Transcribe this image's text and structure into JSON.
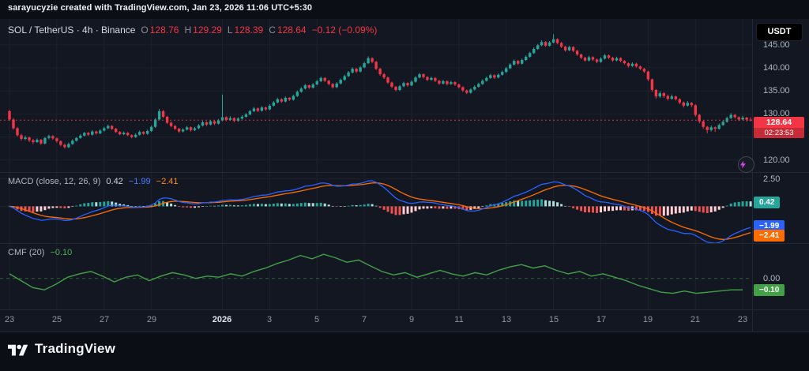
{
  "attribution": "sarayucyzie created with TradingView.com, Jan 23, 2026 11:06 UTC+5:30",
  "currency_button": "USDT",
  "main_pane": {
    "title": "SOL / TetherUS · 4h · Binance",
    "ohlc": {
      "o_label": "O",
      "o": "128.76",
      "h_label": "H",
      "h": "129.29",
      "l_label": "L",
      "l": "128.39",
      "c_label": "C",
      "c": "128.64",
      "change": "−0.12 (−0.09%)"
    },
    "price_badge": {
      "price": "128.64",
      "countdown": "02:23:53"
    }
  },
  "macd_pane": {
    "name": "MACD",
    "params": "(close, 12, 26, 9)",
    "hist_value": "0.42",
    "macd_value": "−1.99",
    "signal_value": "−2.41",
    "axis_label": "2.50",
    "badges": {
      "hist": "0.42",
      "macd": "−1.99",
      "signal": "−2.41"
    }
  },
  "cmf_pane": {
    "name": "CMF",
    "params": "(20)",
    "value": "−0.10",
    "axis_label": "0.00",
    "badge": "−0.10"
  },
  "logo_text": "TradingView",
  "chart_data": {
    "type": "candlestick",
    "title": "SOL / TetherUS · 4h · Binance",
    "symbol": "SOL/USDT",
    "interval": "4h",
    "exchange": "Binance",
    "last_price": 128.64,
    "last": {
      "open": 128.76,
      "high": 129.29,
      "low": 128.39,
      "close": 128.64,
      "change": -0.12,
      "change_pct": -0.09
    },
    "price_axis": {
      "range": [
        117.4,
        150.6
      ],
      "ticks": [
        {
          "value": 145,
          "label": "145.00"
        },
        {
          "value": 140,
          "label": "140.00"
        },
        {
          "value": 135,
          "label": "135.00"
        },
        {
          "value": 130,
          "label": "130.00"
        },
        {
          "value": 120,
          "label": "120.00"
        }
      ],
      "gridlines": [
        145,
        140,
        135,
        130,
        125,
        120
      ]
    },
    "x_axis": {
      "ticks": [
        {
          "index": 0,
          "label": "23"
        },
        {
          "index": 12,
          "label": "25"
        },
        {
          "index": 24,
          "label": "27"
        },
        {
          "index": 36,
          "label": "29"
        },
        {
          "index": 54,
          "label": "2026",
          "major": true
        },
        {
          "index": 66,
          "label": "3"
        },
        {
          "index": 78,
          "label": "5"
        },
        {
          "index": 90,
          "label": "7"
        },
        {
          "index": 102,
          "label": "9"
        },
        {
          "index": 114,
          "label": "11"
        },
        {
          "index": 126,
          "label": "13"
        },
        {
          "index": 138,
          "label": "15"
        },
        {
          "index": 150,
          "label": "17"
        },
        {
          "index": 162,
          "label": "19"
        },
        {
          "index": 174,
          "label": "21"
        },
        {
          "index": 186,
          "label": "23"
        }
      ]
    },
    "candles": [
      [
        130.6,
        130.9,
        128.5,
        128.8
      ],
      [
        128.8,
        129.1,
        126.6,
        126.9
      ],
      [
        126.9,
        127.2,
        125.1,
        125.4
      ],
      [
        125.4,
        125.7,
        124.2,
        124.6
      ],
      [
        124.6,
        125.3,
        124.3,
        124.9
      ],
      [
        124.9,
        125.1,
        123.9,
        124.3
      ],
      [
        124.3,
        124.6,
        123.5,
        123.9
      ],
      [
        123.9,
        124.7,
        123.7,
        124.4
      ],
      [
        124.4,
        124.6,
        123.3,
        123.6
      ],
      [
        123.6,
        125.0,
        123.4,
        124.8
      ],
      [
        124.8,
        125.5,
        124.5,
        125.2
      ],
      [
        125.2,
        125.4,
        124.4,
        124.7
      ],
      [
        124.7,
        124.9,
        123.8,
        124.1
      ],
      [
        124.1,
        124.3,
        123.0,
        123.3
      ],
      [
        123.3,
        123.6,
        122.5,
        122.8
      ],
      [
        122.8,
        123.8,
        122.6,
        123.5
      ],
      [
        123.5,
        124.5,
        123.3,
        124.2
      ],
      [
        124.2,
        125.0,
        124.0,
        124.8
      ],
      [
        124.8,
        125.6,
        124.6,
        125.3
      ],
      [
        125.3,
        126.1,
        125.1,
        125.9
      ],
      [
        125.9,
        126.1,
        125.2,
        125.5
      ],
      [
        125.5,
        126.5,
        125.3,
        126.2
      ],
      [
        126.2,
        126.4,
        125.5,
        125.8
      ],
      [
        125.8,
        126.7,
        125.6,
        126.4
      ],
      [
        126.4,
        127.2,
        126.2,
        126.9
      ],
      [
        126.9,
        127.7,
        126.7,
        127.4
      ],
      [
        127.4,
        127.6,
        126.5,
        126.8
      ],
      [
        126.8,
        127.0,
        125.9,
        126.1
      ],
      [
        126.1,
        126.3,
        125.4,
        125.6
      ],
      [
        125.6,
        126.2,
        125.4,
        125.9
      ],
      [
        125.9,
        126.1,
        125.2,
        125.4
      ],
      [
        125.4,
        125.6,
        124.7,
        125.0
      ],
      [
        125.0,
        125.8,
        124.8,
        125.5
      ],
      [
        125.5,
        126.4,
        125.3,
        126.1
      ],
      [
        126.1,
        126.3,
        125.5,
        125.7
      ],
      [
        125.7,
        126.6,
        125.5,
        126.3
      ],
      [
        126.3,
        127.5,
        126.1,
        127.2
      ],
      [
        127.2,
        129.1,
        127.0,
        128.8
      ],
      [
        128.8,
        131.1,
        128.6,
        130.6
      ],
      [
        130.6,
        130.9,
        129.1,
        129.4
      ],
      [
        129.4,
        129.6,
        127.8,
        128.1
      ],
      [
        128.1,
        128.4,
        127.1,
        127.4
      ],
      [
        127.4,
        127.6,
        126.5,
        126.8
      ],
      [
        126.8,
        127.0,
        125.9,
        126.2
      ],
      [
        126.2,
        126.9,
        126.0,
        126.6
      ],
      [
        126.6,
        127.4,
        126.4,
        127.1
      ],
      [
        127.1,
        127.3,
        126.2,
        126.5
      ],
      [
        126.5,
        127.2,
        126.3,
        126.9
      ],
      [
        126.9,
        127.8,
        126.7,
        127.5
      ],
      [
        127.5,
        128.5,
        127.3,
        128.2
      ],
      [
        128.2,
        128.4,
        127.4,
        127.7
      ],
      [
        127.7,
        128.7,
        127.5,
        128.4
      ],
      [
        128.4,
        128.6,
        127.6,
        127.9
      ],
      [
        127.9,
        128.9,
        127.7,
        128.6
      ],
      [
        128.6,
        134.2,
        128.4,
        129.3
      ],
      [
        129.3,
        129.5,
        128.4,
        128.7
      ],
      [
        128.7,
        129.5,
        128.5,
        129.1
      ],
      [
        129.1,
        129.3,
        128.2,
        128.5
      ],
      [
        128.5,
        129.3,
        128.3,
        129.0
      ],
      [
        129.0,
        129.7,
        128.8,
        129.4
      ],
      [
        129.4,
        130.2,
        129.2,
        129.9
      ],
      [
        129.9,
        130.9,
        129.7,
        130.6
      ],
      [
        130.6,
        131.5,
        130.4,
        131.2
      ],
      [
        131.2,
        131.4,
        130.4,
        130.7
      ],
      [
        130.7,
        131.7,
        130.5,
        131.4
      ],
      [
        131.4,
        131.6,
        130.7,
        131.0
      ],
      [
        131.0,
        132.1,
        130.8,
        131.8
      ],
      [
        131.8,
        132.8,
        131.6,
        132.5
      ],
      [
        132.5,
        133.5,
        132.3,
        133.2
      ],
      [
        133.2,
        133.4,
        132.4,
        132.7
      ],
      [
        132.7,
        133.8,
        132.5,
        133.5
      ],
      [
        133.5,
        133.7,
        132.8,
        133.1
      ],
      [
        133.1,
        134.2,
        132.9,
        133.9
      ],
      [
        133.9,
        135.1,
        133.7,
        134.8
      ],
      [
        134.8,
        135.8,
        134.6,
        135.5
      ],
      [
        135.5,
        136.5,
        135.3,
        136.2
      ],
      [
        136.2,
        136.4,
        135.4,
        135.7
      ],
      [
        135.7,
        136.7,
        135.5,
        136.4
      ],
      [
        136.4,
        137.4,
        136.2,
        137.1
      ],
      [
        137.1,
        138.1,
        136.9,
        137.8
      ],
      [
        137.8,
        138.0,
        136.9,
        137.2
      ],
      [
        137.2,
        137.4,
        136.2,
        136.5
      ],
      [
        136.5,
        136.7,
        135.5,
        135.8
      ],
      [
        135.8,
        136.9,
        135.6,
        136.6
      ],
      [
        136.6,
        137.7,
        136.4,
        137.4
      ],
      [
        137.4,
        138.5,
        137.2,
        138.2
      ],
      [
        138.2,
        139.3,
        138.0,
        139.0
      ],
      [
        139.0,
        140.1,
        138.8,
        139.8
      ],
      [
        139.8,
        140.0,
        138.9,
        139.2
      ],
      [
        139.2,
        140.4,
        139.0,
        140.1
      ],
      [
        140.1,
        141.3,
        139.9,
        141.0
      ],
      [
        141.0,
        142.5,
        140.8,
        142.1
      ],
      [
        142.1,
        142.3,
        141.0,
        141.3
      ],
      [
        141.3,
        141.5,
        139.5,
        139.8
      ],
      [
        139.8,
        140.0,
        138.3,
        138.6
      ],
      [
        138.6,
        138.9,
        137.6,
        137.9
      ],
      [
        137.9,
        138.1,
        136.5,
        136.8
      ],
      [
        136.8,
        137.0,
        135.6,
        135.9
      ],
      [
        135.9,
        136.1,
        134.9,
        135.2
      ],
      [
        135.2,
        136.3,
        135.0,
        136.0
      ],
      [
        136.0,
        137.0,
        135.8,
        136.7
      ],
      [
        136.7,
        136.9,
        135.9,
        136.2
      ],
      [
        136.2,
        137.3,
        136.0,
        137.0
      ],
      [
        137.0,
        138.2,
        136.8,
        137.9
      ],
      [
        137.9,
        138.9,
        137.7,
        138.6
      ],
      [
        138.6,
        138.8,
        137.7,
        138.0
      ],
      [
        138.0,
        138.2,
        137.1,
        137.4
      ],
      [
        137.4,
        138.1,
        137.2,
        137.8
      ],
      [
        137.8,
        138.0,
        136.9,
        137.2
      ],
      [
        137.2,
        137.4,
        136.3,
        136.6
      ],
      [
        136.6,
        137.4,
        136.4,
        137.1
      ],
      [
        137.1,
        137.3,
        136.2,
        136.5
      ],
      [
        136.5,
        137.2,
        136.3,
        136.9
      ],
      [
        136.9,
        137.1,
        136.1,
        136.4
      ],
      [
        136.4,
        136.6,
        135.5,
        135.8
      ],
      [
        135.8,
        136.0,
        134.8,
        135.1
      ],
      [
        135.1,
        135.3,
        134.3,
        134.6
      ],
      [
        134.6,
        135.6,
        134.4,
        135.3
      ],
      [
        135.3,
        136.2,
        135.1,
        135.9
      ],
      [
        135.9,
        136.8,
        135.7,
        136.5
      ],
      [
        136.5,
        137.5,
        136.3,
        137.2
      ],
      [
        137.2,
        138.1,
        137.0,
        137.8
      ],
      [
        137.8,
        138.7,
        137.6,
        138.4
      ],
      [
        138.4,
        138.6,
        137.6,
        137.9
      ],
      [
        137.9,
        138.8,
        137.7,
        138.5
      ],
      [
        138.5,
        139.4,
        138.3,
        139.1
      ],
      [
        139.1,
        140.2,
        138.9,
        139.9
      ],
      [
        139.9,
        141.0,
        139.7,
        140.7
      ],
      [
        140.7,
        141.8,
        140.5,
        141.5
      ],
      [
        141.5,
        141.7,
        140.6,
        140.9
      ],
      [
        140.9,
        142.0,
        140.7,
        141.7
      ],
      [
        141.7,
        142.7,
        141.5,
        142.4
      ],
      [
        142.4,
        143.5,
        142.2,
        143.2
      ],
      [
        143.2,
        144.4,
        143.0,
        144.1
      ],
      [
        144.1,
        145.2,
        143.9,
        144.9
      ],
      [
        144.9,
        146.0,
        144.7,
        145.6
      ],
      [
        145.6,
        145.8,
        144.5,
        144.8
      ],
      [
        144.8,
        145.8,
        144.6,
        145.5
      ],
      [
        145.5,
        147.3,
        145.3,
        146.2
      ],
      [
        146.2,
        146.4,
        145.1,
        145.4
      ],
      [
        145.4,
        145.6,
        144.3,
        144.6
      ],
      [
        144.6,
        144.8,
        143.5,
        143.8
      ],
      [
        143.8,
        144.8,
        143.6,
        144.5
      ],
      [
        144.5,
        144.7,
        143.4,
        143.7
      ],
      [
        143.7,
        143.9,
        142.6,
        142.9
      ],
      [
        142.9,
        143.1,
        141.9,
        142.2
      ],
      [
        142.2,
        142.4,
        141.3,
        141.6
      ],
      [
        141.6,
        142.6,
        141.4,
        142.3
      ],
      [
        142.3,
        142.5,
        141.5,
        141.8
      ],
      [
        141.8,
        142.0,
        141.0,
        141.3
      ],
      [
        141.3,
        142.3,
        141.1,
        142.0
      ],
      [
        142.0,
        143.0,
        141.8,
        142.7
      ],
      [
        142.7,
        142.9,
        141.9,
        142.2
      ],
      [
        142.2,
        142.4,
        141.3,
        141.6
      ],
      [
        141.6,
        142.4,
        141.4,
        142.1
      ],
      [
        142.1,
        142.3,
        141.2,
        141.5
      ],
      [
        141.5,
        141.7,
        140.7,
        141.0
      ],
      [
        141.0,
        141.2,
        140.1,
        140.4
      ],
      [
        140.4,
        141.2,
        140.2,
        140.9
      ],
      [
        140.9,
        141.1,
        140.0,
        140.3
      ],
      [
        140.3,
        140.5,
        139.5,
        139.8
      ],
      [
        139.8,
        140.0,
        138.9,
        139.2
      ],
      [
        139.2,
        139.4,
        137.1,
        137.5
      ],
      [
        137.5,
        137.7,
        134.8,
        135.2
      ],
      [
        135.2,
        135.4,
        133.3,
        133.8
      ],
      [
        133.8,
        134.9,
        133.5,
        134.5
      ],
      [
        134.5,
        134.7,
        133.5,
        133.9
      ],
      [
        133.9,
        134.2,
        132.9,
        133.3
      ],
      [
        133.3,
        134.2,
        133.1,
        133.8
      ],
      [
        133.8,
        134.0,
        132.9,
        133.2
      ],
      [
        133.2,
        133.4,
        132.1,
        132.5
      ],
      [
        132.5,
        132.7,
        131.4,
        131.8
      ],
      [
        131.8,
        132.8,
        131.6,
        132.4
      ],
      [
        132.4,
        132.6,
        131.5,
        131.9
      ],
      [
        131.9,
        132.1,
        129.4,
        129.8
      ],
      [
        129.8,
        130.0,
        128.0,
        128.4
      ],
      [
        128.4,
        128.6,
        126.8,
        127.2
      ],
      [
        127.2,
        127.4,
        125.8,
        126.5
      ],
      [
        126.5,
        127.5,
        126.2,
        127.1
      ],
      [
        127.1,
        127.3,
        126.1,
        126.8
      ],
      [
        126.8,
        127.9,
        126.6,
        127.6
      ],
      [
        127.6,
        128.6,
        127.4,
        128.3
      ],
      [
        128.3,
        129.4,
        128.1,
        129.1
      ],
      [
        129.1,
        130.2,
        128.9,
        129.8
      ],
      [
        129.8,
        130.0,
        129.0,
        129.3
      ],
      [
        129.3,
        129.5,
        128.5,
        128.8
      ],
      [
        128.8,
        129.6,
        128.6,
        129.2
      ],
      [
        129.2,
        129.4,
        128.3,
        128.76
      ],
      [
        128.76,
        129.29,
        128.39,
        128.64
      ]
    ],
    "indicators": {
      "macd": {
        "params": {
          "source": "close",
          "fast": 12,
          "slow": 26,
          "signal": 9
        },
        "range": [
          -3.35,
          3.05
        ],
        "axis_tick": 2.5,
        "axis_tick_label": "2.50",
        "last": {
          "hist": 0.42,
          "macd": -1.99,
          "signal": -2.41
        }
      },
      "cmf": {
        "period": 20,
        "range": [
          -0.27,
          0.3
        ],
        "axis_tick": 0,
        "axis_tick_label": "0.00",
        "last": -0.1,
        "values": [
          0.04,
          -0.02,
          -0.08,
          -0.1,
          -0.05,
          0.01,
          0.04,
          0.06,
          0.02,
          -0.03,
          0.01,
          0.03,
          -0.02,
          0.02,
          0.05,
          0.03,
          0.0,
          0.02,
          0.01,
          0.04,
          0.02,
          0.06,
          0.09,
          0.13,
          0.16,
          0.2,
          0.17,
          0.21,
          0.18,
          0.14,
          0.16,
          0.11,
          0.06,
          0.03,
          0.05,
          0.01,
          0.04,
          0.07,
          0.04,
          0.02,
          0.05,
          0.03,
          0.07,
          0.1,
          0.12,
          0.09,
          0.11,
          0.07,
          0.04,
          0.06,
          0.02,
          0.04,
          0.01,
          -0.02,
          -0.06,
          -0.09,
          -0.12,
          -0.13,
          -0.11,
          -0.13,
          -0.12,
          -0.11,
          -0.1,
          -0.1
        ]
      }
    },
    "colors": {
      "up": "#26a69a",
      "down": "#f23645",
      "macd_line": "#2962ff",
      "signal_line": "#ff6d00",
      "hist_grow_above": "#26a69a",
      "hist_fall_above": "#b2dfdb",
      "hist_grow_below": "#ffcdd2",
      "hist_fall_below": "#ef5350",
      "cmf_line": "#43a047",
      "badge_price": "#f23645",
      "badge_hist": "#26a69a",
      "badge_macd": "#2962ff",
      "badge_signal": "#ff6d00",
      "badge_cmf": "#43a047",
      "grid": "#1c212c",
      "last_price_line": "#f23645"
    }
  }
}
